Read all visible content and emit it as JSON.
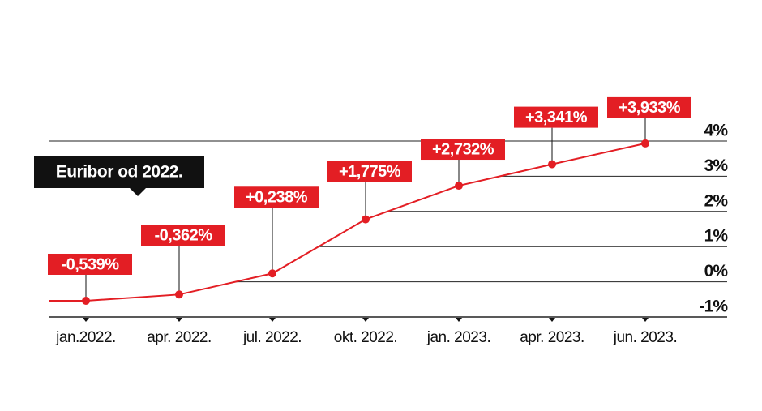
{
  "chart_data": {
    "type": "line",
    "title": "Euribor od 2022.",
    "categories": [
      "jan.2022.",
      "apr. 2022.",
      "jul. 2022.",
      "okt. 2022.",
      "jan. 2023.",
      "apr. 2023.",
      "jun. 2023."
    ],
    "series": [
      {
        "name": "Euribor",
        "color": "#e31e24",
        "values": [
          -0.539,
          -0.362,
          0.238,
          1.775,
          2.732,
          3.341,
          3.933
        ],
        "value_labels": [
          "-0,539%",
          "-0,362%",
          "+0,238%",
          "+1,775%",
          "+2,732%",
          "+3,341%",
          "+3,933%"
        ]
      }
    ],
    "ylim": [
      -1,
      4
    ],
    "yticks": [
      {
        "value": -1,
        "label": "-1%"
      },
      {
        "value": 0,
        "label": "0%"
      },
      {
        "value": 1,
        "label": "1%"
      },
      {
        "value": 2,
        "label": "2%"
      },
      {
        "value": 3,
        "label": "3%"
      },
      {
        "value": 4,
        "label": "4%"
      }
    ],
    "grid": true
  }
}
